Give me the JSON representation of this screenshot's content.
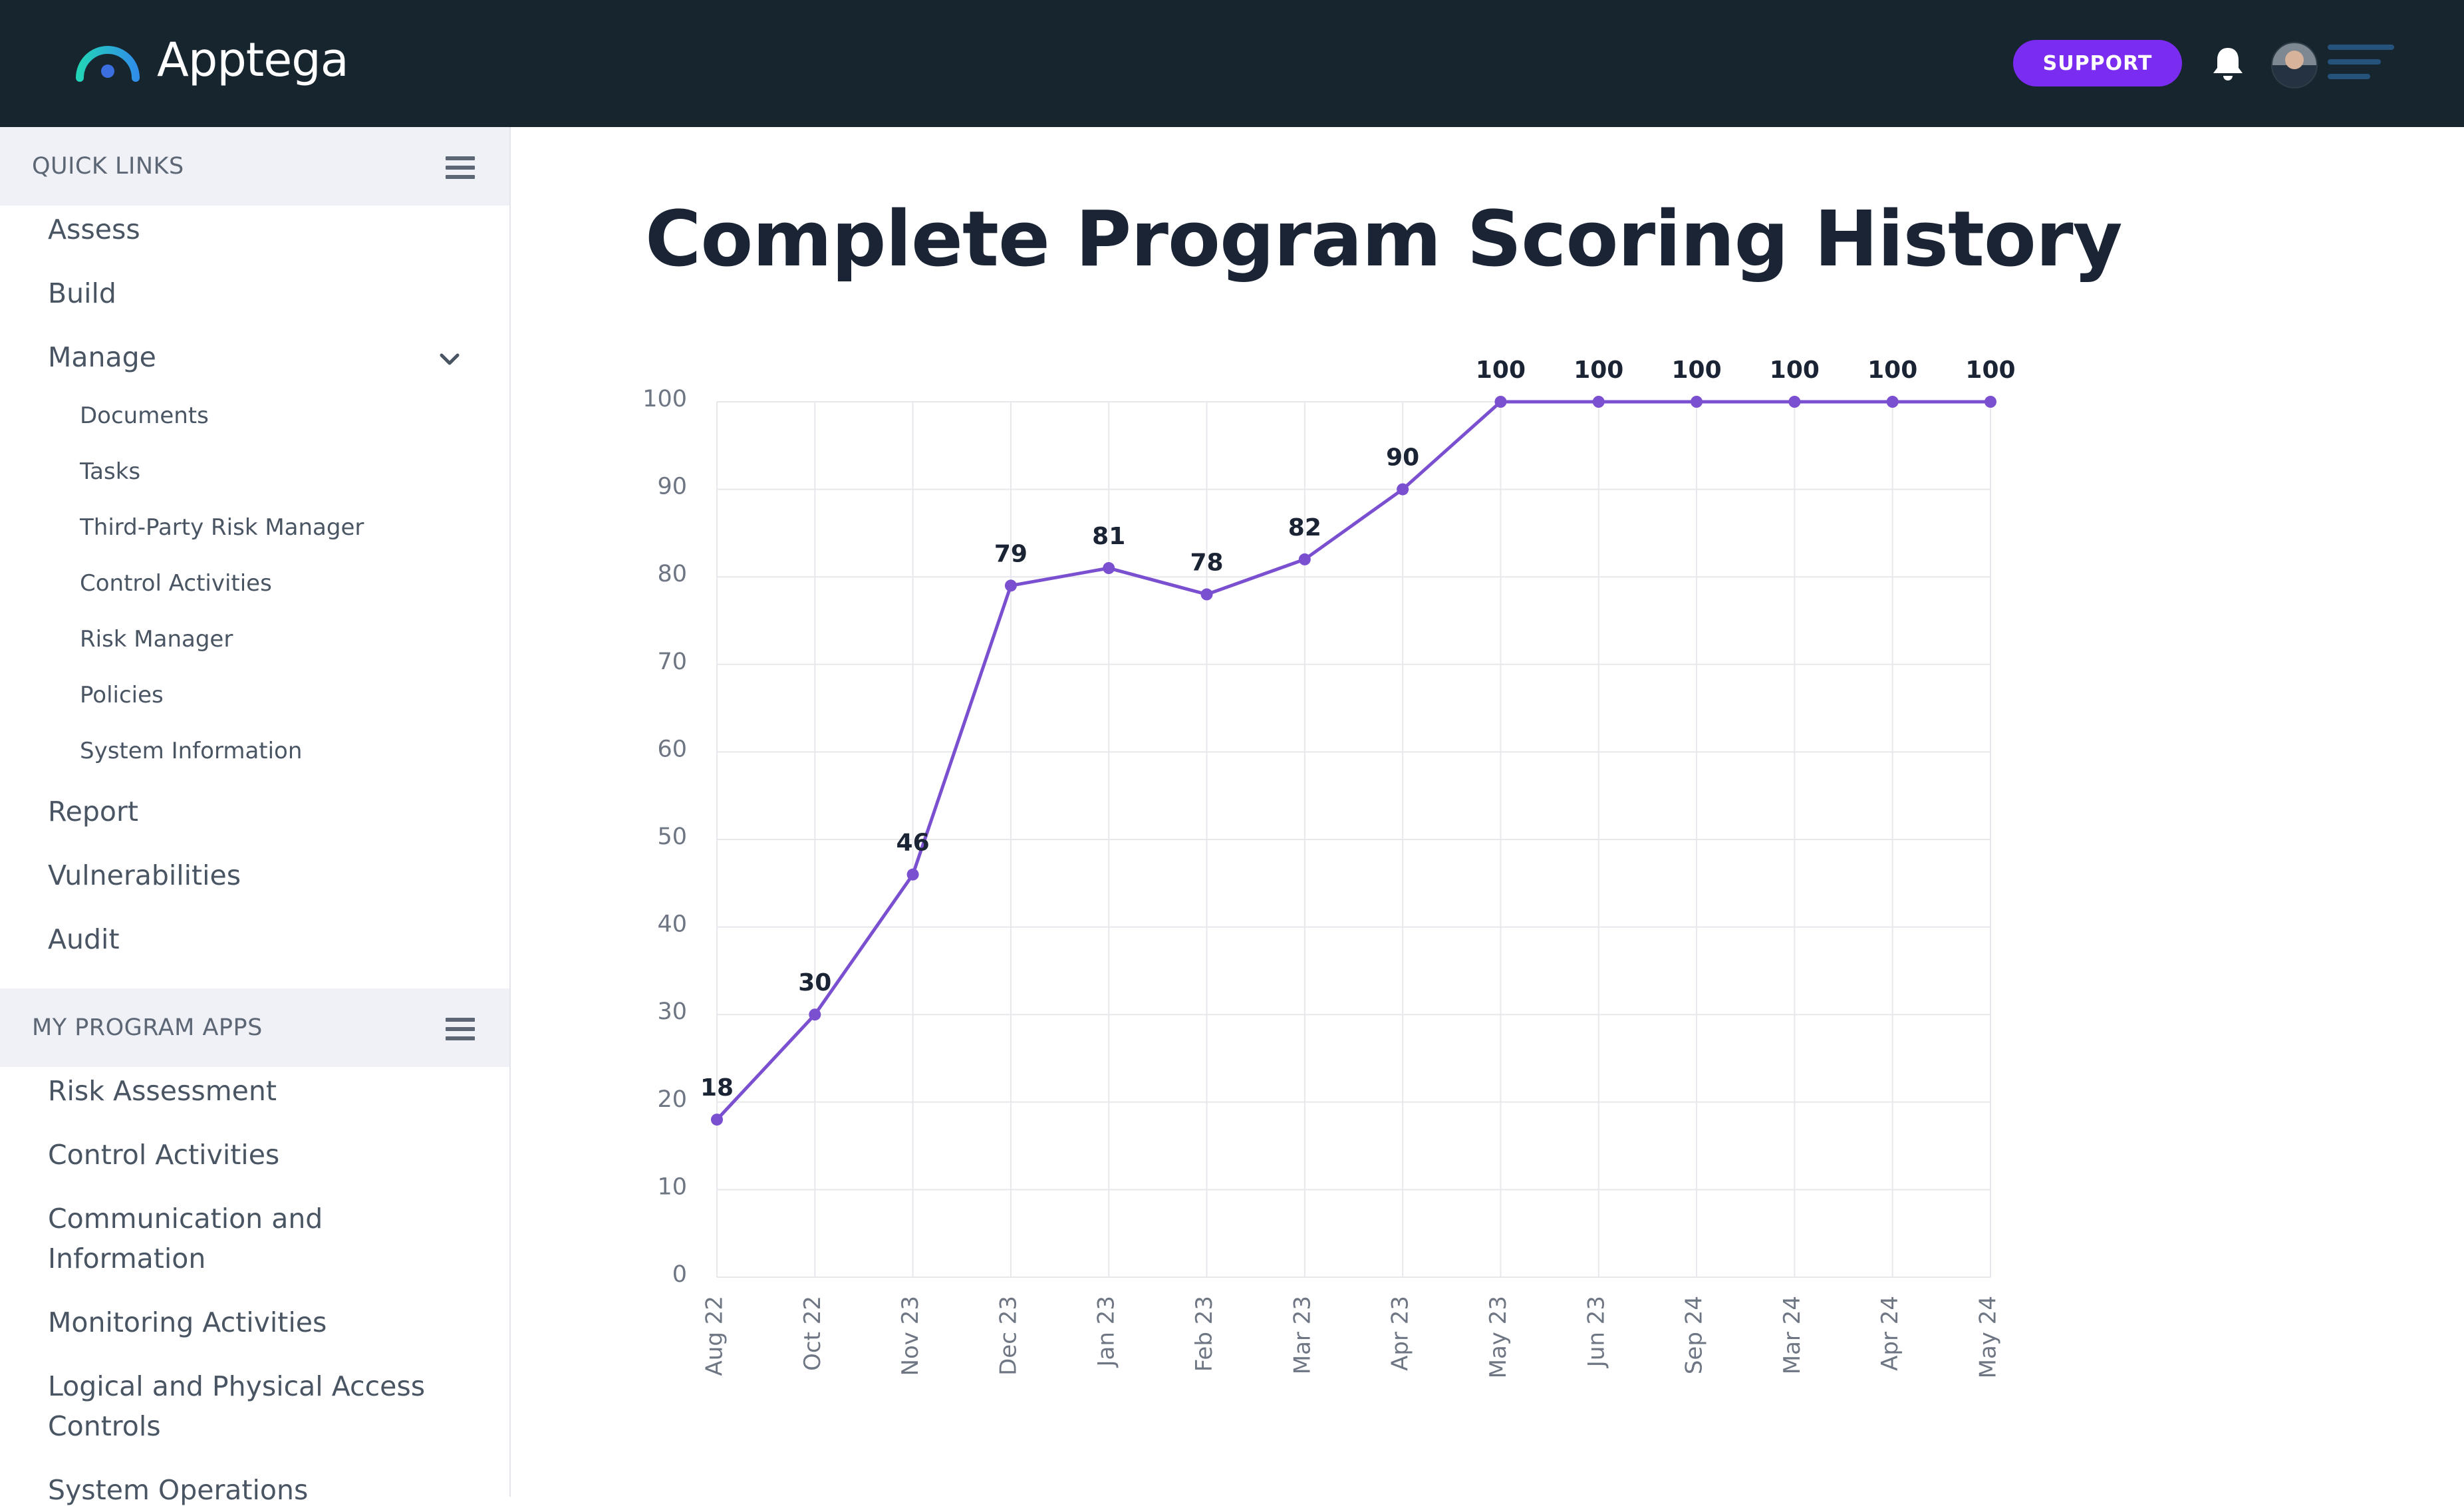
{
  "app": {
    "name": "Apptega"
  },
  "header": {
    "support_label": "SUPPORT"
  },
  "sidebar": {
    "quick_links_title": "QUICK LINKS",
    "items": {
      "assess": "Assess",
      "build": "Build",
      "manage": "Manage",
      "documents": "Documents",
      "tasks": "Tasks",
      "third_party": "Third-Party Risk Manager",
      "control_activities": "Control Activities",
      "risk_manager": "Risk Manager",
      "policies": "Policies",
      "system_information": "System Information",
      "report": "Report",
      "vulnerabilities": "Vulnerabilities",
      "audit": "Audit"
    },
    "program_apps_title": "MY PROGRAM APPS",
    "apps": {
      "risk_assessment": "Risk Assessment",
      "control_activities": "Control Activities",
      "comm_line1": "Communication and",
      "comm_line2": "Information",
      "monitoring": "Monitoring Activities",
      "logical_line1": "Logical and Physical Access",
      "logical_line2": "Controls",
      "system_operations": "System Operations"
    }
  },
  "main": {
    "title": "Complete Program Scoring History"
  },
  "chart_data": {
    "type": "line",
    "categories": [
      "Aug 22",
      "Oct 22",
      "Nov 23",
      "Dec 23",
      "Jan 23",
      "Feb 23",
      "Mar 23",
      "Apr 23",
      "May 23",
      "Jun 23",
      "Sep 24",
      "Mar 24",
      "Apr 24",
      "May 24"
    ],
    "series": [
      {
        "values": [
          18,
          30,
          46,
          79,
          81,
          78,
          82,
          90,
          100,
          100,
          100,
          100,
          100,
          100
        ]
      }
    ],
    "data_labels": [
      "18",
      "30",
      "46",
      "79",
      "81",
      "78",
      "82",
      "90",
      "100",
      "100",
      "100",
      "100",
      "100",
      "100"
    ],
    "ylim": [
      0,
      100
    ],
    "yticks": [
      0,
      10,
      20,
      30,
      40,
      50,
      60,
      70,
      80,
      90,
      100
    ],
    "grid": true,
    "line_color": "#7a4fd0",
    "label_color": "#1a2434",
    "axis_text_color": "#6e7583"
  }
}
